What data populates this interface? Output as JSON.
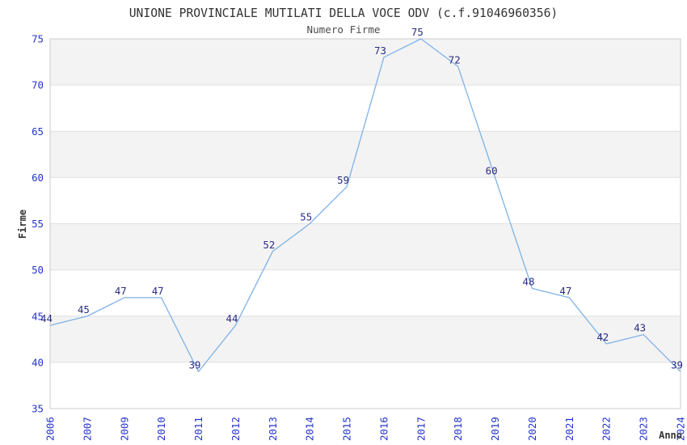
{
  "header": {
    "title": "UNIONE PROVINCIALE MUTILATI DELLA VOCE ODV (c.f.91046960356)",
    "subtitle": "Numero Firme"
  },
  "axes": {
    "y_title": "Firme",
    "x_title": "Anno"
  },
  "chart_data": {
    "type": "line",
    "title": "UNIONE PROVINCIALE MUTILATI DELLA VOCE ODV (c.f.91046960356)",
    "subtitle": "Numero Firme",
    "xlabel": "Anno",
    "ylabel": "Firme",
    "categories": [
      "2006",
      "2007",
      "2009",
      "2010",
      "2011",
      "2012",
      "2013",
      "2014",
      "2015",
      "2016",
      "2017",
      "2018",
      "2019",
      "2020",
      "2021",
      "2022",
      "2023",
      "2024"
    ],
    "values": [
      44,
      45,
      47,
      47,
      39,
      44,
      52,
      55,
      59,
      73,
      75,
      72,
      60,
      48,
      47,
      42,
      43,
      39
    ],
    "ylim": [
      35,
      75
    ],
    "ytick_step": 5,
    "yticks": [
      35,
      40,
      45,
      50,
      55,
      60,
      65,
      70,
      75
    ],
    "grid": "horizontal-alternating-bands",
    "legend": "none",
    "point_markers": false,
    "data_labels_shown": true,
    "colors": {
      "line": "#7fb2e6",
      "data_label": "#2b2b85",
      "tick_label": "#2433cc",
      "axis_title": "#333333",
      "title": "#333333",
      "subtitle": "#4d4d4d",
      "band": "#f3f3f3",
      "gridline": "#e0e0e0",
      "plot_border": "#cccccc",
      "background": "#ffffff"
    }
  }
}
